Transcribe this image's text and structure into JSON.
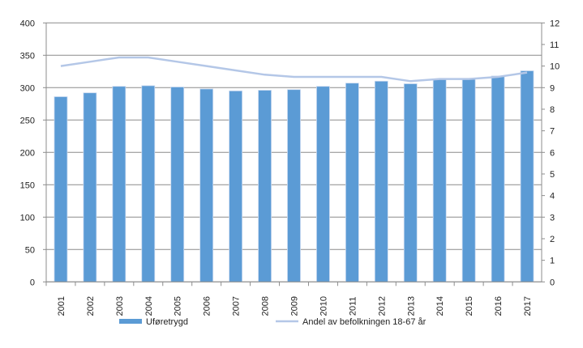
{
  "chart_data": {
    "type": "bar",
    "title": "",
    "categories": [
      "2001",
      "2002",
      "2003",
      "2004",
      "2005",
      "2006",
      "2007",
      "2008",
      "2009",
      "2010",
      "2011",
      "2012",
      "2013",
      "2014",
      "2015",
      "2016",
      "2017"
    ],
    "series": [
      {
        "name": "Uføretrygd",
        "type": "bar",
        "axis": "left",
        "color": "#5b9bd5",
        "values": [
          286,
          292,
          302,
          303,
          301,
          298,
          295,
          296,
          297,
          302,
          307,
          310,
          306,
          313,
          313,
          318,
          326
        ]
      },
      {
        "name": "Andel av befolkningen 18-67 år",
        "type": "line",
        "axis": "right",
        "color": "#b4c7e7",
        "values": [
          10.0,
          10.2,
          10.4,
          10.4,
          10.2,
          10.0,
          9.8,
          9.6,
          9.5,
          9.5,
          9.5,
          9.5,
          9.3,
          9.4,
          9.4,
          9.5,
          9.7
        ]
      }
    ],
    "y_left": {
      "min": 0,
      "max": 400,
      "ticks": [
        "0",
        "50",
        "100",
        "150",
        "200",
        "250",
        "300",
        "350",
        "400"
      ]
    },
    "y_right": {
      "min": 0,
      "max": 12,
      "ticks": [
        "0",
        "1",
        "2",
        "3",
        "4",
        "5",
        "6",
        "7",
        "8",
        "9",
        "10",
        "11",
        "12"
      ]
    },
    "grid": true,
    "legend_position": "bottom"
  }
}
